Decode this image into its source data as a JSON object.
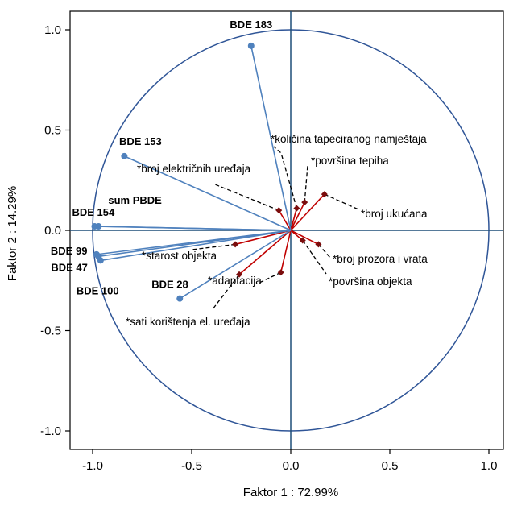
{
  "chart_data": {
    "type": "scatter",
    "subtype": "pca-correlation-circle",
    "xlabel": "Faktor 1 : 72.99%",
    "ylabel": "Faktor 2 : 14.29%",
    "xlim": [
      -1.0,
      1.0
    ],
    "ylim": [
      -1.0,
      1.0
    ],
    "xticks": [
      "-1.0",
      "-0.5",
      "0.0",
      "0.5",
      "1.0"
    ],
    "yticks": [
      "1.0",
      "0.5",
      "0.0",
      "-0.5",
      "-1.0"
    ],
    "xtick_values": [
      -1.0,
      -0.5,
      0.0,
      0.5,
      1.0
    ],
    "ytick_values": [
      1.0,
      0.5,
      0.0,
      -0.5,
      -1.0
    ],
    "grid": false,
    "colors": {
      "active": "#4f81bd",
      "supplementary_line": "#c00000",
      "supplementary_marker": "#7b0d0d",
      "circle": "#2f5597",
      "axes": "#1f4e79",
      "leader": "#000000"
    },
    "active_variables": [
      {
        "name": "BDE 183",
        "x": -0.2,
        "y": 0.92
      },
      {
        "name": "BDE 153",
        "x": -0.84,
        "y": 0.37
      },
      {
        "name": "sum PBDE",
        "x": -0.97,
        "y": 0.02
      },
      {
        "name": "BDE 154",
        "x": -0.99,
        "y": 0.02
      },
      {
        "name": "BDE 99",
        "x": -0.98,
        "y": -0.12
      },
      {
        "name": "BDE 47",
        "x": -0.97,
        "y": -0.13
      },
      {
        "name": "BDE 100",
        "x": -0.96,
        "y": -0.15
      },
      {
        "name": "BDE 28",
        "x": -0.56,
        "y": -0.34
      }
    ],
    "supplementary_variables": [
      {
        "name": "količina tapeciranog namještaja",
        "x": 0.03,
        "y": 0.11
      },
      {
        "name": "površina tepiha",
        "x": 0.07,
        "y": 0.14
      },
      {
        "name": "broj električnih uređaja",
        "x": -0.06,
        "y": 0.1
      },
      {
        "name": "broj ukućana",
        "x": 0.17,
        "y": 0.18
      },
      {
        "name": "broj prozora i vrata",
        "x": 0.14,
        "y": -0.07
      },
      {
        "name": "površina objekta",
        "x": 0.06,
        "y": -0.05
      },
      {
        "name": "starost objekta",
        "x": -0.28,
        "y": -0.07
      },
      {
        "name": "adaptacija",
        "x": -0.05,
        "y": -0.21
      },
      {
        "name": "sati korištenja el. uređaja",
        "x": -0.26,
        "y": -0.22
      }
    ]
  }
}
